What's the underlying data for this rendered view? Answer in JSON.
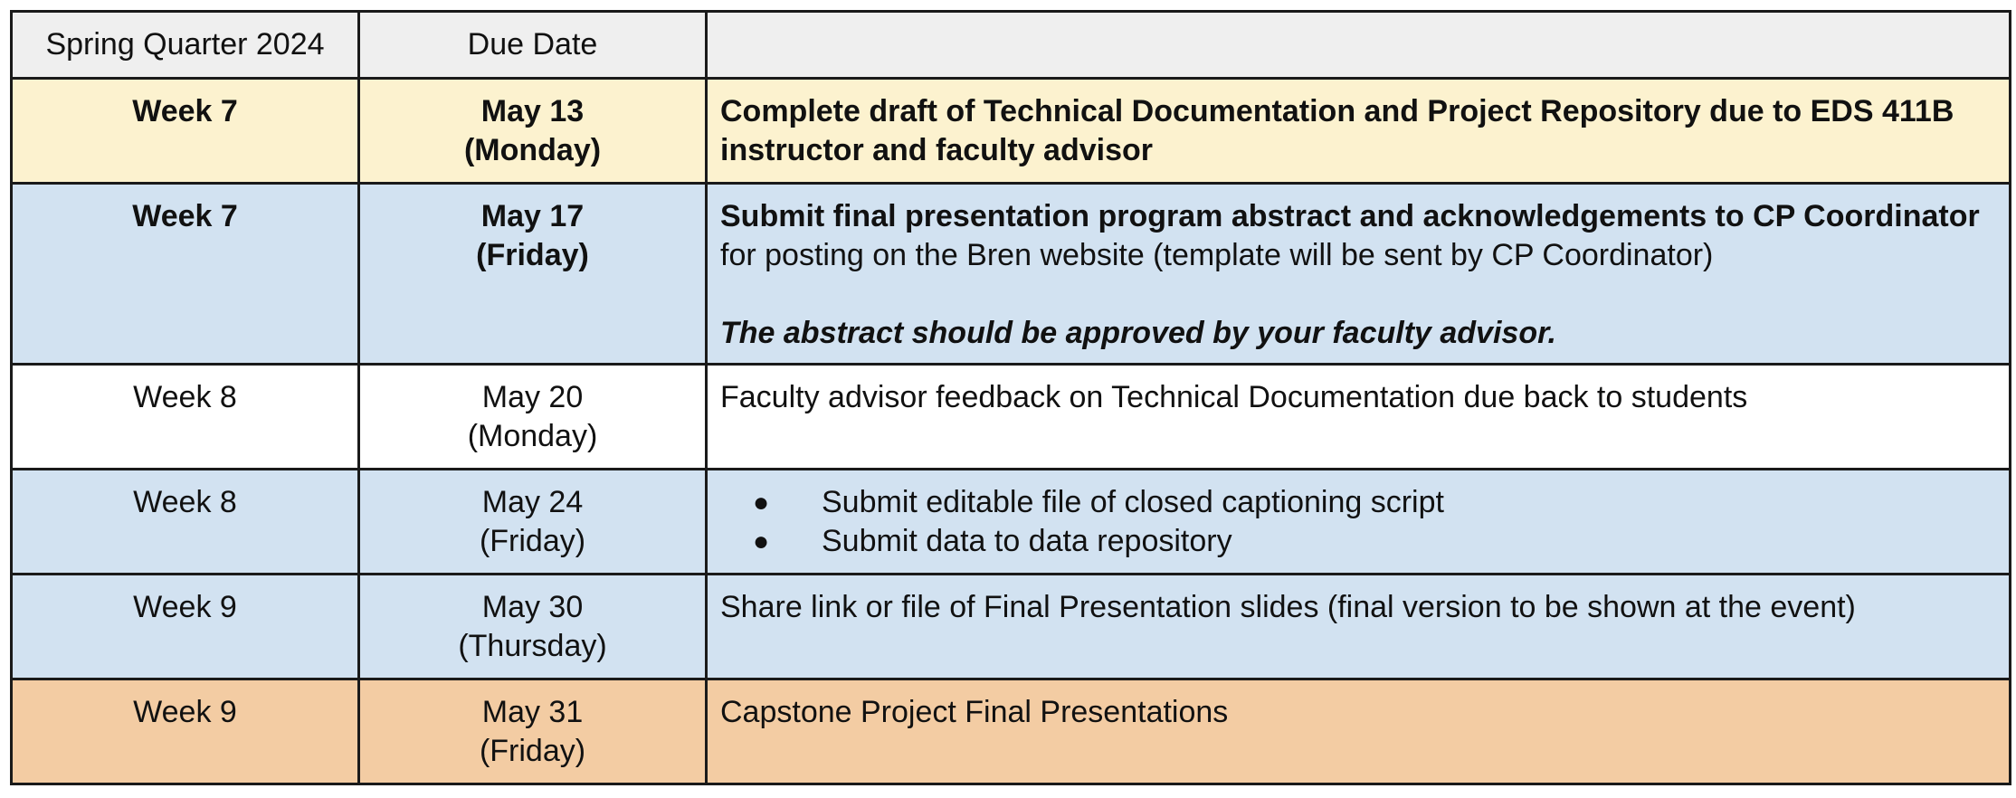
{
  "table": {
    "headers": [
      "Spring Quarter 2024",
      "Due Date",
      ""
    ],
    "rows": [
      {
        "week": "Week 7",
        "due_date": "May 13",
        "due_day": "(Monday)",
        "task_bold": "Complete draft of Technical Documentation and Project Repository due to EDS 411B instructor and faculty advisor"
      },
      {
        "week": "Week 7",
        "due_date": "May 17",
        "due_day": "(Friday)",
        "task_bold": "Submit final presentation program abstract and acknowledgements to CP Coordinator",
        "task_rest": " for posting on the Bren website (template will be sent by CP Coordinator)",
        "task_note": "The abstract should be approved by your faculty advisor."
      },
      {
        "week": "Week 8",
        "due_date": "May 20",
        "due_day": "(Monday)",
        "task": "Faculty advisor feedback on Technical Documentation due back to students"
      },
      {
        "week": "Week 8",
        "due_date": "May 24",
        "due_day": "(Friday)",
        "bullets": [
          "Submit editable file of closed captioning script",
          "Submit data to data repository"
        ]
      },
      {
        "week": "Week 9",
        "due_date": "May 30",
        "due_day": "(Thursday)",
        "task": "Share link or file of Final Presentation slides (final version to be shown at the event)"
      },
      {
        "week": "Week 9",
        "due_date": "May 31",
        "due_day": "(Friday)",
        "task": "Capstone Project Final Presentations"
      }
    ]
  },
  "colors": {
    "header_bg": "#efefef",
    "highlight_yellow": "#fcf2cf",
    "highlight_blue": "#d2e2f1",
    "highlight_orange": "#f3cca3",
    "border": "#1a1a1a"
  }
}
